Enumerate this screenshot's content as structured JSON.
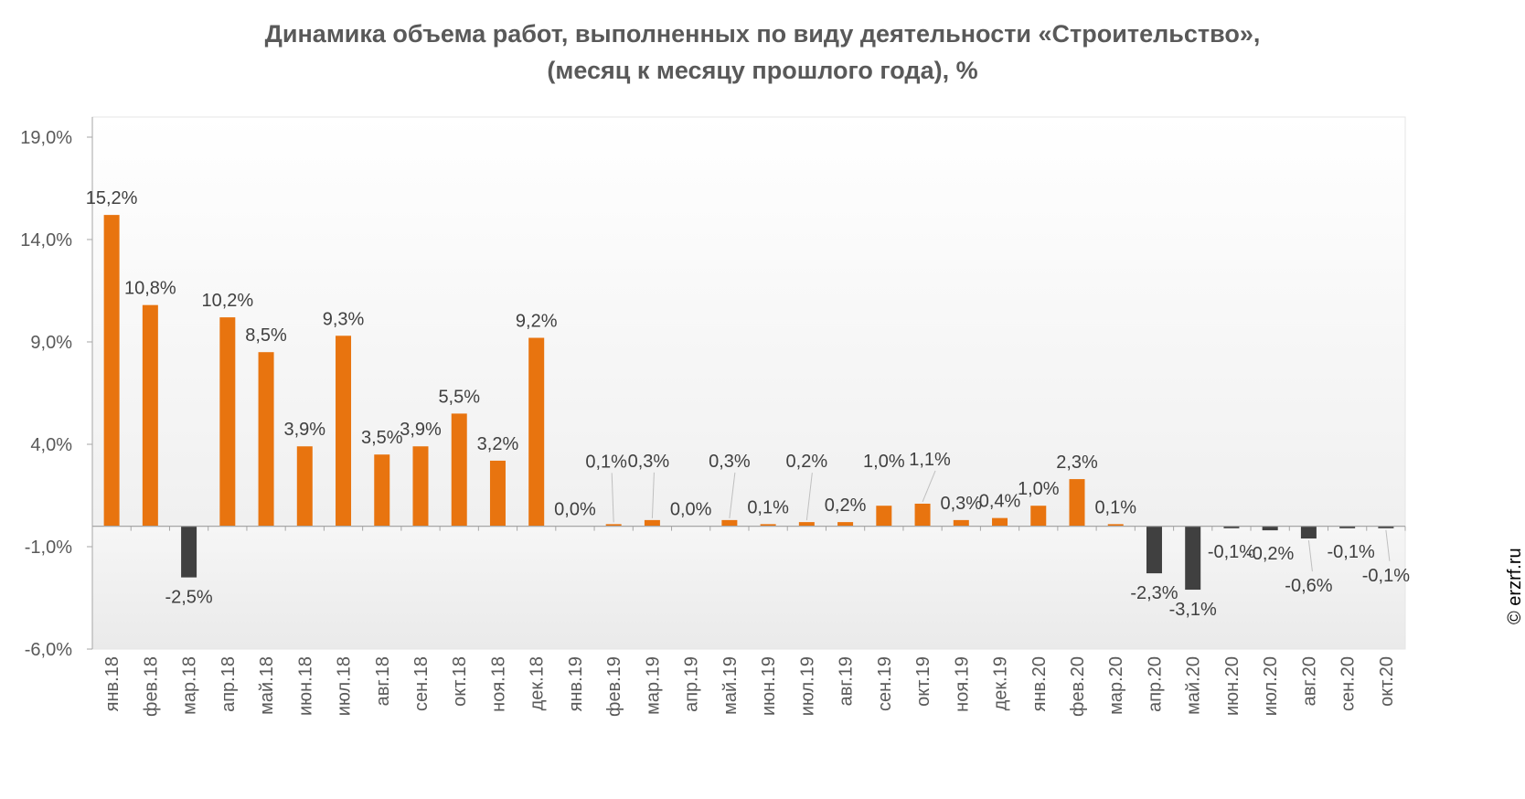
{
  "chart_data": {
    "type": "bar",
    "title": "Динамика объема работ, выполненных по виду деятельности «Строительство»,",
    "subtitle": "(месяц к месяцу прошлого года), %",
    "xlabel": "",
    "ylabel": "",
    "ylim": [
      -6.0,
      19.0
    ],
    "yticks": [
      19.0,
      14.0,
      9.0,
      4.0,
      -1.0,
      -6.0
    ],
    "ytick_labels": [
      "19,0%",
      "14,0%",
      "9,0%",
      "4,0%",
      "-1,0%",
      "-6,0%"
    ],
    "categories": [
      "янв.18",
      "фев.18",
      "мар.18",
      "апр.18",
      "май.18",
      "июн.18",
      "июл.18",
      "авг.18",
      "сен.18",
      "окт.18",
      "ноя.18",
      "дек.18",
      "янв.19",
      "фев.19",
      "мар.19",
      "апр.19",
      "май.19",
      "июн.19",
      "июл.19",
      "авг.19",
      "сен.19",
      "окт.19",
      "ноя.19",
      "дек.19",
      "янв.20",
      "фев.20",
      "мар.20",
      "апр.20",
      "май.20",
      "июн.20",
      "июл.20",
      "авг.20",
      "сен.20",
      "окт.20"
    ],
    "values": [
      15.2,
      10.8,
      -2.5,
      10.2,
      8.5,
      3.9,
      9.3,
      3.5,
      3.9,
      5.5,
      3.2,
      9.2,
      0.0,
      0.1,
      0.3,
      0.0,
      0.3,
      0.1,
      0.2,
      0.2,
      1.0,
      1.1,
      0.3,
      0.4,
      1.0,
      2.3,
      0.1,
      -2.3,
      -3.1,
      -0.1,
      -0.2,
      -0.6,
      -0.1,
      -0.1
    ],
    "value_labels": [
      "15,2%",
      "10,8%",
      "-2,5%",
      "10,2%",
      "8,5%",
      "3,9%",
      "9,3%",
      "3,5%",
      "3,9%",
      "5,5%",
      "3,2%",
      "9,2%",
      "0,0%",
      "0,1%",
      "0,3%",
      "0,0%",
      "0,3%",
      "0,1%",
      "0,2%",
      "0,2%",
      "1,0%",
      "1,1%",
      "0,3%",
      "0,4%",
      "1,0%",
      "2,3%",
      "0,1%",
      "-2,3%",
      "-3,1%",
      "-0,1%",
      "-0,2%",
      "-0,6%",
      "-0,1%",
      "-0,1%"
    ],
    "colors": {
      "positive": "#E8740F",
      "negative": "#404040",
      "grid": "#D9D9D9",
      "axis": "#A6A6A6"
    }
  },
  "watermark": "© erzrf.ru"
}
